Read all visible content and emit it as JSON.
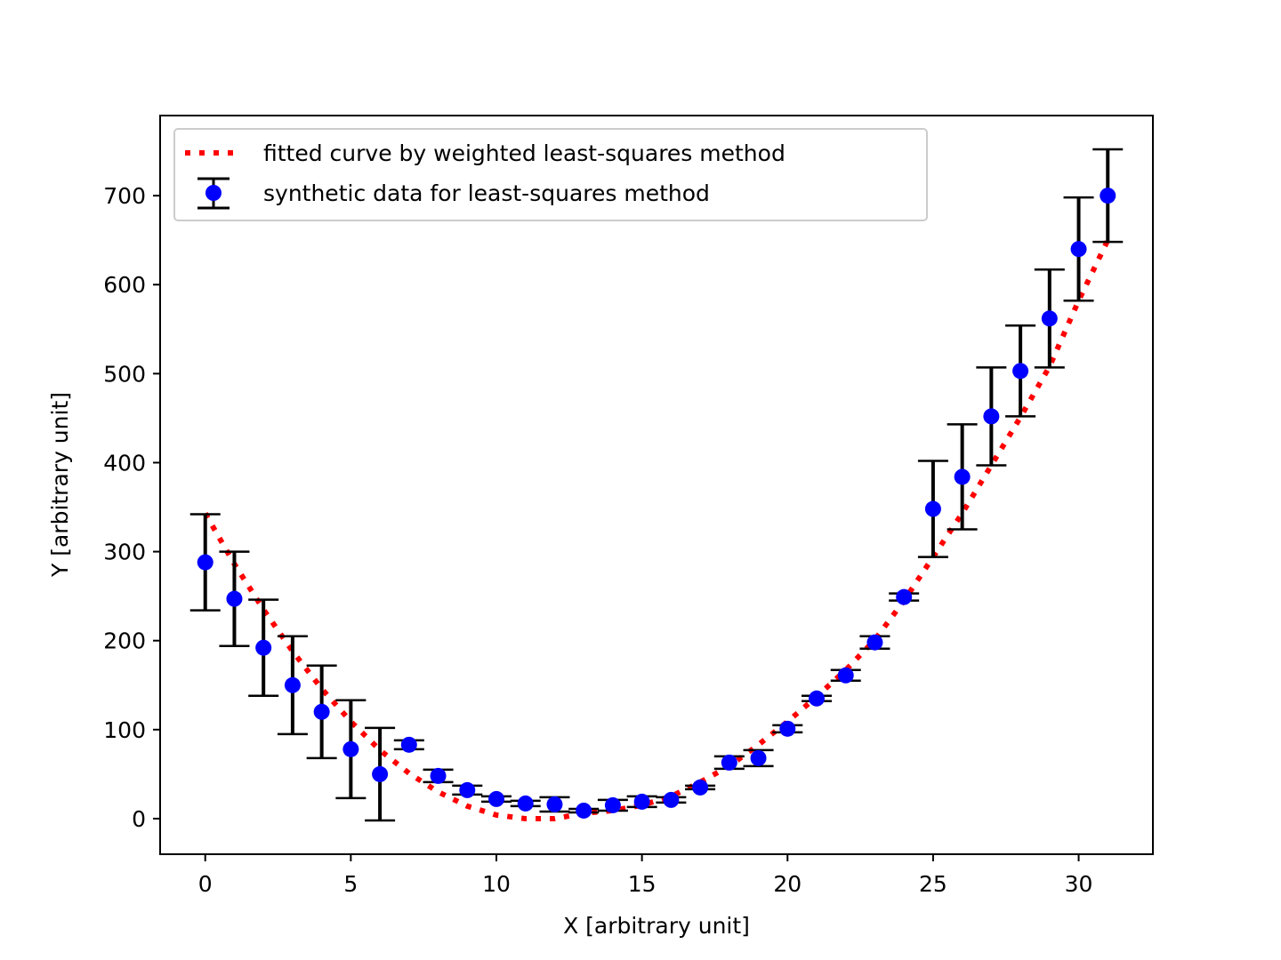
{
  "chart_data": {
    "type": "scatter",
    "xlabel": "X [arbitrary unit]",
    "ylabel": "Y [arbitrary unit]",
    "xlim": [
      -1.55,
      32.55
    ],
    "ylim": [
      -40,
      790
    ],
    "xticks": [
      0,
      5,
      10,
      15,
      20,
      25,
      30
    ],
    "yticks": [
      0,
      100,
      200,
      300,
      400,
      500,
      600,
      700
    ],
    "grid": false,
    "legend_position": "upper-left",
    "series": [
      {
        "name": "fitted curve by weighted least-squares method",
        "kind": "line",
        "style": "dotted",
        "color": "#ff0000",
        "x": [
          0,
          1,
          2,
          3,
          4,
          5,
          6,
          7,
          8,
          9,
          10,
          11,
          12,
          13,
          14,
          15,
          16,
          17,
          18,
          19,
          20,
          21,
          22,
          23,
          24,
          25,
          26,
          27,
          28,
          29,
          30,
          31
        ],
        "y": [
          343,
          286,
          235,
          188,
          146,
          109,
          77,
          51,
          30,
          14,
          4,
          0,
          0,
          6,
          9,
          15,
          25,
          41,
          59,
          83,
          109,
          137,
          167,
          201,
          245,
          294,
          343,
          397,
          451,
          508,
          582,
          650
        ]
      },
      {
        "name": "synthetic data for least-squares method",
        "kind": "errorbar",
        "marker_color": "#0000ff",
        "error_color": "#000000",
        "x": [
          0,
          1,
          2,
          3,
          4,
          5,
          6,
          7,
          8,
          9,
          10,
          11,
          12,
          13,
          14,
          15,
          16,
          17,
          18,
          19,
          20,
          21,
          22,
          23,
          24,
          25,
          26,
          27,
          28,
          29,
          30,
          31
        ],
        "y": [
          288,
          247,
          192,
          150,
          120,
          78,
          50,
          83,
          48,
          32,
          22,
          17,
          16,
          9,
          15,
          19,
          21,
          35,
          63,
          68,
          101,
          135,
          161,
          198,
          249,
          348,
          384,
          452,
          503,
          562,
          640,
          700
        ],
        "yerr": [
          54,
          53,
          54,
          55,
          52,
          55,
          52,
          5,
          7,
          5,
          3,
          3,
          8,
          2,
          6,
          6,
          3,
          2,
          7,
          9,
          4,
          3,
          6,
          7,
          4,
          54,
          59,
          55,
          51,
          55,
          58,
          52
        ]
      }
    ]
  }
}
